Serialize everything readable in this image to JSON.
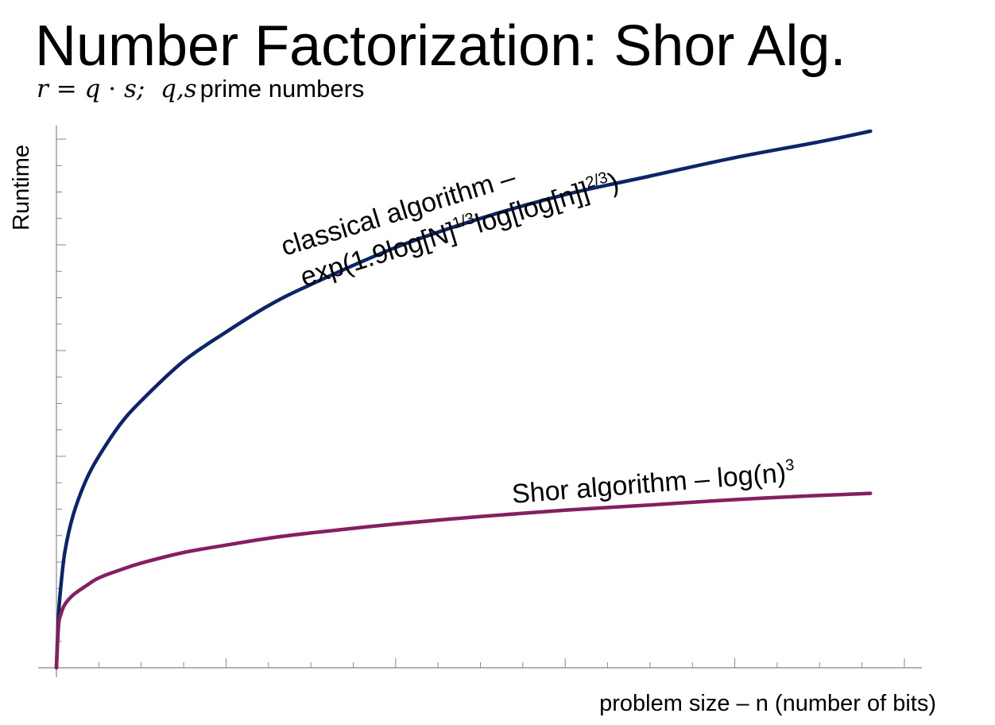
{
  "slide": {
    "title": "Number Factorization: Shor Alg.",
    "subtitle": {
      "r": "r",
      "eq": "=",
      "q": "q",
      "dot": "·",
      "s": "s;",
      "qs": "q,s",
      "rest": "prime numbers"
    }
  },
  "chart_data": {
    "type": "line",
    "title": "",
    "xlabel": "problem size – n (number of bits)",
    "ylabel": "Runtime",
    "xlim": [
      0,
      20
    ],
    "ylim": [
      0,
      10
    ],
    "grid": false,
    "tick_labels": false,
    "x_tick_count": 20,
    "y_tick_count": 20,
    "series": [
      {
        "name": "classical algorithm – exp(1.9log[N]^1/3log[log[n]]^2/3)",
        "label_line1": "classical algorithm –",
        "label_line2_parts": [
          "exp(1.9log[N]",
          "1/3",
          "log[log[n]]",
          "2/3",
          ")"
        ],
        "color": "#0d2566",
        "x": [
          0,
          0.05,
          0.1,
          0.2,
          0.4,
          0.7,
          1,
          1.5,
          2,
          3,
          4,
          5,
          6,
          8,
          10,
          12,
          14,
          16,
          18,
          19.2
        ],
        "y": [
          0,
          1.0,
          1.5,
          2.2,
          2.9,
          3.55,
          4.0,
          4.6,
          5.05,
          5.8,
          6.35,
          6.85,
          7.25,
          7.95,
          8.5,
          8.95,
          9.3,
          9.65,
          9.95,
          10.15
        ]
      },
      {
        "name": "Shor algorithm – log(n)^3",
        "label_parts": [
          "Shor algorithm – log(n)",
          "3"
        ],
        "color": "#852060",
        "x": [
          0,
          0.05,
          0.1,
          0.2,
          0.4,
          0.7,
          1,
          1.5,
          2,
          3,
          4,
          5,
          6,
          8,
          10,
          12,
          14,
          16,
          18,
          19.2
        ],
        "y": [
          0,
          0.8,
          1.0,
          1.2,
          1.38,
          1.55,
          1.7,
          1.85,
          1.98,
          2.18,
          2.32,
          2.45,
          2.55,
          2.72,
          2.86,
          2.98,
          3.08,
          3.18,
          3.26,
          3.3
        ]
      }
    ]
  }
}
